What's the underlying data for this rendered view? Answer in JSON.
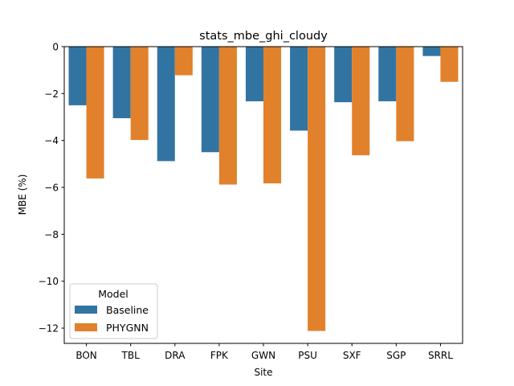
{
  "chart_data": {
    "type": "bar",
    "title": "stats_mbe_ghi_cloudy",
    "xlabel": "Site",
    "ylabel": "MBE (%)",
    "categories": [
      "BON",
      "TBL",
      "DRA",
      "FPK",
      "GWN",
      "PSU",
      "SXF",
      "SGP",
      "SRRL"
    ],
    "series": [
      {
        "name": "Baseline",
        "color": "#3274a1",
        "values": [
          -2.5,
          -3.05,
          -4.88,
          -4.5,
          -2.33,
          -3.58,
          -2.37,
          -2.33,
          -0.4
        ]
      },
      {
        "name": "PHYGNN",
        "color": "#e1812c",
        "values": [
          -5.62,
          -3.98,
          -1.22,
          -5.88,
          -5.83,
          -12.12,
          -4.63,
          -4.03,
          -1.5
        ]
      }
    ],
    "ylim": [
      -12.65,
      0
    ],
    "yticks": [
      0,
      -2,
      -4,
      -6,
      -8,
      -10,
      -12
    ],
    "grid": false,
    "legend": {
      "title": "Model",
      "placement": "lower-left"
    }
  }
}
